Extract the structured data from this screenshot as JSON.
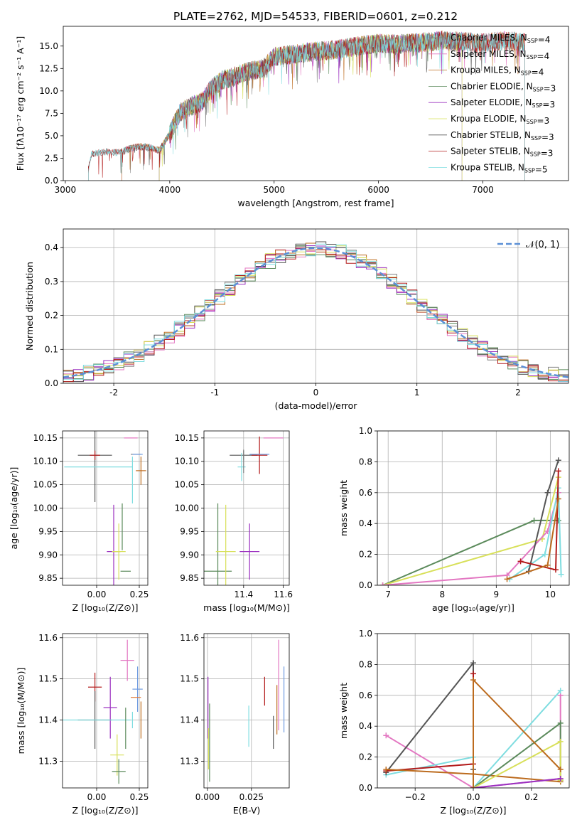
{
  "figure_title": "PLATE=2762, MJD=54533, FIBERID=0601, z=0.212",
  "colors": {
    "Chabrier MILES": "#7f7f7f",
    "Salpeter MILES": "#e377c2",
    "Kroupa MILES": "#bc6b1e",
    "Chabrier ELODIE": "#5b8a5b",
    "Salpeter ELODIE": "#9b30c0",
    "Kroupa ELODIE": "#d8e05a",
    "Chabrier STELIB": "#555555",
    "Salpeter STELIB": "#b31b1b",
    "Kroupa STELIB": "#7fdde0",
    "normal_curve": "#5b8fd6",
    "extra_orange": "#e07b39",
    "extra_blue": "#6f9be0"
  },
  "chart_data": [
    {
      "id": "spectrum",
      "type": "line",
      "title": "PLATE=2762, MJD=54533, FIBERID=0601, z=0.212",
      "xlabel": "wavelength [Angstrom, rest frame]",
      "ylabel": "Flux [fλ10⁻¹⁷ erg cm⁻² s⁻¹ A⁻¹]",
      "xlim": [
        2980,
        7820
      ],
      "ylim": [
        0,
        17.2
      ],
      "xticks": [
        3000,
        4000,
        5000,
        6000,
        7000
      ],
      "yticks": [
        0.0,
        2.5,
        5.0,
        7.5,
        10.0,
        12.5,
        15.0
      ],
      "grid": false,
      "legend_position": "upper-right",
      "envelope": {
        "x": [
          3000,
          3200,
          3250,
          3400,
          3500,
          3600,
          3700,
          3800,
          3900,
          4000,
          4100,
          4200,
          4300,
          4400,
          4500,
          4600,
          4700,
          4800,
          4900,
          5000,
          5200,
          5400,
          5600,
          5800,
          6000,
          6200,
          6400,
          6600,
          6800,
          7000,
          7200,
          7400
        ],
        "y": [
          0,
          0,
          3.0,
          3.2,
          3.1,
          3.5,
          3.8,
          3.7,
          3.4,
          5.2,
          7.6,
          8.3,
          8.7,
          10.3,
          11.2,
          11.5,
          12.0,
          12.3,
          12.5,
          13.8,
          14.1,
          14.4,
          14.6,
          15.0,
          15.3,
          15.2,
          15.4,
          15.6,
          15.5,
          15.3,
          15.6,
          15.4
        ]
      },
      "series": [
        {
          "name": "Chabrier MILES, N$_{SSP}$=4",
          "start": 3540,
          "end": 7400
        },
        {
          "name": "Salpeter MILES, N$_{SSP}$=4",
          "start": 3540,
          "end": 7400
        },
        {
          "name": "Kroupa MILES, N$_{SSP}$=4",
          "start": 3540,
          "end": 7400
        },
        {
          "name": "Chabrier ELODIE, N$_{SSP}$=3",
          "start": 3900,
          "end": 6800
        },
        {
          "name": "Salpeter ELODIE, N$_{SSP}$=3",
          "start": 3900,
          "end": 6800
        },
        {
          "name": "Kroupa ELODIE, N$_{SSP}$=3",
          "start": 3900,
          "end": 6800
        },
        {
          "name": "Chabrier STELIB, N$_{SSP}$=3",
          "start": 3220,
          "end": 7400
        },
        {
          "name": "Salpeter STELIB, N$_{SSP}$=3",
          "start": 3220,
          "end": 7400
        },
        {
          "name": "Kroupa STELIB, N$_{SSP}$=5",
          "start": 3220,
          "end": 7400
        }
      ]
    },
    {
      "id": "residual_histogram",
      "type": "line",
      "xlabel": "(data-model)/error",
      "ylabel": "Normed distribution",
      "xlim": [
        -2.5,
        2.5
      ],
      "ylim": [
        0,
        0.455
      ],
      "xticks": [
        -2,
        -1,
        0,
        1,
        2
      ],
      "yticks": [
        0.0,
        0.1,
        0.2,
        0.3,
        0.4
      ],
      "grid": true,
      "legend": "𝒩(0, 1)",
      "legend_position": "upper-right",
      "bin_width": 0.1,
      "normal_curve": {
        "mean": 0,
        "sigma": 1,
        "style": "dashed"
      }
    },
    {
      "id": "age_vs_metallicity",
      "type": "scatter",
      "xlabel": "Z [log₁₀(Z/Z⊙)]",
      "ylabel": "age  [log₁₀(age/yr)]",
      "xlim": [
        -0.2,
        0.3
      ],
      "ylim": [
        9.835,
        10.165
      ],
      "xticks": [
        "0.00",
        "0.25"
      ],
      "xtick_values": [
        0,
        0.25
      ],
      "yticks": [
        "9.85",
        "9.90",
        "9.95",
        "10.00",
        "10.05",
        "10.10",
        "10.15"
      ],
      "ytick_values": [
        9.85,
        9.9,
        9.95,
        10.0,
        10.05,
        10.1,
        10.15
      ],
      "grid": true,
      "points": [
        {
          "series": "Chabrier MILES",
          "x": 0.23,
          "y": 10.115,
          "xerr": 0.03,
          "yerr": 0.0
        },
        {
          "series": "Salpeter MILES",
          "x": 0.2,
          "y": 10.15,
          "xerr": 0.04,
          "yerr": 0.0
        },
        {
          "series": "Kroupa MILES",
          "x": 0.26,
          "y": 10.08,
          "xerr": 0.03,
          "yerr": 0.03
        },
        {
          "series": "Chabrier ELODIE",
          "x": 0.17,
          "y": 9.865,
          "xerr": 0.03,
          "yerr": 0.0
        },
        {
          "series": "Salpeter ELODIE",
          "x": 0.1,
          "y": 9.907,
          "xerr": 0.04,
          "yerr": 0.1
        },
        {
          "series": "Kroupa ELODIE",
          "x": 0.13,
          "y": 9.907,
          "xerr": 0.04,
          "yerr": 0.06
        },
        {
          "series": "Chabrier STELIB",
          "x": -0.01,
          "y": 10.113,
          "xerr": 0.1,
          "yerr": 0.1
        },
        {
          "series": "Salpeter STELIB",
          "x": -0.01,
          "y": 10.113,
          "xerr": 0.03,
          "yerr": 0.01
        },
        {
          "series": "Kroupa STELIB",
          "x": 0.01,
          "y": 10.088,
          "xerr": 0.2,
          "yerr": 0.0
        },
        {
          "series": "Chabrier ELODIE",
          "x": 0.15,
          "y": 9.96,
          "xerr": 0.0,
          "yerr": 0.05
        },
        {
          "series": "extra_blue",
          "x": 0.24,
          "y": 10.115,
          "xerr": 0.03,
          "yerr": 0.0
        },
        {
          "series": "Kroupa STELIB",
          "x": 0.21,
          "y": 10.06,
          "xerr": 0.0,
          "yerr": 0.05
        }
      ]
    },
    {
      "id": "age_vs_mass",
      "type": "scatter",
      "xlabel": "mass [log₁₀(M/M⊙)]",
      "ylabel": "",
      "xlim": [
        11.2,
        11.63
      ],
      "ylim": [
        9.835,
        10.165
      ],
      "xticks": [
        "11.4",
        "11.6"
      ],
      "xtick_values": [
        11.4,
        11.6
      ],
      "yticks": [
        "9.85",
        "9.90",
        "9.95",
        "10.00",
        "10.05",
        "10.10",
        "10.15"
      ],
      "ytick_values": [
        9.85,
        9.9,
        9.95,
        10.0,
        10.05,
        10.1,
        10.15
      ],
      "grid": true,
      "points": [
        {
          "series": "Chabrier ELODIE",
          "x": 11.27,
          "y": 9.865,
          "xerr": 0.07,
          "yerr": 0.145
        },
        {
          "series": "Kroupa ELODIE",
          "x": 11.31,
          "y": 9.907,
          "xerr": 0.05,
          "yerr": 0.1
        },
        {
          "series": "Salpeter ELODIE",
          "x": 11.43,
          "y": 9.907,
          "xerr": 0.05,
          "yerr": 0.06
        },
        {
          "series": "Chabrier STELIB",
          "x": 11.4,
          "y": 10.113,
          "xerr": 0.07,
          "yerr": 0.01
        },
        {
          "series": "Salpeter STELIB",
          "x": 11.48,
          "y": 10.113,
          "xerr": 0.04,
          "yerr": 0.04
        },
        {
          "series": "Kroupa STELIB",
          "x": 11.39,
          "y": 10.088,
          "xerr": 0.02,
          "yerr": 0.03
        },
        {
          "series": "extra_blue",
          "x": 11.48,
          "y": 10.115,
          "xerr": 0.05,
          "yerr": 0.0
        },
        {
          "series": "Salpeter MILES",
          "x": 11.55,
          "y": 10.15,
          "xerr": 0.05,
          "yerr": 0.0
        },
        {
          "series": "Chabrier MILES",
          "x": 11.4,
          "y": 10.1,
          "xerr": 0.0,
          "yerr": 0.025
        }
      ]
    },
    {
      "id": "mass_weight_vs_age",
      "type": "line",
      "xlabel": "age  [log₁₀(age/yr)]",
      "ylabel": "mass weight",
      "xlim": [
        6.8,
        10.35
      ],
      "ylim": [
        0,
        1.0
      ],
      "xticks": [
        7,
        8,
        9,
        10
      ],
      "yticks": [
        "0.0",
        "0.2",
        "0.4",
        "0.6",
        "0.8",
        "1.0"
      ],
      "ytick_values": [
        0,
        0.2,
        0.4,
        0.6,
        0.8,
        1.0
      ],
      "grid": true,
      "series": [
        {
          "name": "Chabrier ELODIE",
          "x": [
            6.9,
            9.7,
            10.15
          ],
          "y": [
            0.0,
            0.42,
            0.42
          ]
        },
        {
          "name": "Kroupa ELODIE",
          "x": [
            6.9,
            9.85,
            10.15
          ],
          "y": [
            0.0,
            0.3,
            0.7
          ]
        },
        {
          "name": "Salpeter MILES",
          "x": [
            6.9,
            9.2,
            9.95,
            10.15
          ],
          "y": [
            0.0,
            0.065,
            0.35,
            0.6
          ]
        },
        {
          "name": "Kroupa STELIB",
          "x": [
            9.25,
            9.9,
            10.15,
            10.2
          ],
          "y": [
            0.04,
            0.2,
            0.63,
            0.07
          ]
        },
        {
          "name": "Chabrier STELIB",
          "x": [
            9.6,
            9.95,
            10.15
          ],
          "y": [
            0.09,
            0.6,
            0.81
          ]
        },
        {
          "name": "Salpeter STELIB",
          "x": [
            9.45,
            10.1,
            10.15
          ],
          "y": [
            0.155,
            0.1,
            0.74
          ]
        },
        {
          "name": "Kroupa MILES",
          "x": [
            9.2,
            9.95,
            10.15
          ],
          "y": [
            0.04,
            0.13,
            0.56
          ]
        }
      ]
    },
    {
      "id": "mass_vs_metallicity",
      "type": "scatter",
      "xlabel": "Z [log₁₀(Z/Z⊙)]",
      "ylabel": "mass [log₁₀(M/M⊙)]",
      "xlim": [
        -0.2,
        0.3
      ],
      "ylim": [
        11.235,
        11.61
      ],
      "xticks": [
        "0.00",
        "0.25"
      ],
      "xtick_values": [
        0,
        0.25
      ],
      "yticks": [
        "11.3",
        "11.4",
        "11.5",
        "11.6"
      ],
      "ytick_values": [
        11.3,
        11.4,
        11.5,
        11.6
      ],
      "grid": true,
      "points": [
        {
          "series": "Salpeter STELIB",
          "x": -0.01,
          "y": 11.48,
          "xerr": 0.04,
          "yerr": 0.035
        },
        {
          "series": "Salpeter ELODIE",
          "x": 0.08,
          "y": 11.43,
          "xerr": 0.04,
          "yerr": 0.075
        },
        {
          "series": "Kroupa ELODIE",
          "x": 0.12,
          "y": 11.315,
          "xerr": 0.04,
          "yerr": 0.05
        },
        {
          "series": "Chabrier ELODIE",
          "x": 0.13,
          "y": 11.275,
          "xerr": 0.04,
          "yerr": 0.03
        },
        {
          "series": "Chabrier STELIB",
          "x": -0.01,
          "y": 11.4,
          "xerr": 0.1,
          "yerr": 0.07
        },
        {
          "series": "Kroupa STELIB",
          "x": 0.0,
          "y": 11.4,
          "xerr": 0.2,
          "yerr": 0.0
        },
        {
          "series": "Salpeter MILES",
          "x": 0.18,
          "y": 11.545,
          "xerr": 0.04,
          "yerr": 0.05
        },
        {
          "series": "extra_blue",
          "x": 0.24,
          "y": 11.475,
          "xerr": 0.03,
          "yerr": 0.055
        },
        {
          "series": "extra_orange",
          "x": 0.23,
          "y": 11.455,
          "xerr": 0.03,
          "yerr": 0.0
        },
        {
          "series": "Kroupa MILES",
          "x": 0.26,
          "y": 11.4,
          "xerr": 0.0,
          "yerr": 0.045
        },
        {
          "series": "Kroupa STELIB",
          "x": 0.21,
          "y": 11.4,
          "xerr": 0.0,
          "yerr": 0.02
        },
        {
          "series": "Chabrier ELODIE",
          "x": 0.17,
          "y": 11.38,
          "xerr": 0.0,
          "yerr": 0.05
        }
      ]
    },
    {
      "id": "mass_vs_ebv",
      "type": "scatter",
      "xlabel": "E(B-V)",
      "ylabel": "",
      "xlim": [
        -0.002,
        0.0465
      ],
      "ylim": [
        11.235,
        11.61
      ],
      "xticks": [
        "0.000",
        "0.025"
      ],
      "xtick_values": [
        0,
        0.025
      ],
      "yticks": [
        "11.3",
        "11.4",
        "11.5",
        "11.6"
      ],
      "ytick_values": [
        11.3,
        11.4,
        11.5,
        11.6
      ],
      "grid": true,
      "points": [
        {
          "series": "Salpeter ELODIE",
          "x": 0.0003,
          "y": 11.43,
          "xerr": 0,
          "yerr": 0.075
        },
        {
          "series": "Kroupa ELODIE",
          "x": 0.0006,
          "y": 11.33,
          "xerr": 0,
          "yerr": 0.05
        },
        {
          "series": "Chabrier ELODIE",
          "x": 0.0012,
          "y": 11.345,
          "xerr": 0,
          "yerr": 0.095
        },
        {
          "series": "Kroupa STELIB",
          "x": 0.0235,
          "y": 11.385,
          "xerr": 0,
          "yerr": 0.05
        },
        {
          "series": "Salpeter STELIB",
          "x": 0.0325,
          "y": 11.47,
          "xerr": 0,
          "yerr": 0.035
        },
        {
          "series": "Chabrier STELIB",
          "x": 0.0375,
          "y": 11.37,
          "xerr": 0,
          "yerr": 0.04
        },
        {
          "series": "Kroupa MILES",
          "x": 0.0395,
          "y": 11.425,
          "xerr": 0,
          "yerr": 0.06
        },
        {
          "series": "Salpeter MILES",
          "x": 0.0405,
          "y": 11.485,
          "xerr": 0,
          "yerr": 0.11
        },
        {
          "series": "extra_blue",
          "x": 0.0435,
          "y": 11.45,
          "xerr": 0,
          "yerr": 0.08
        }
      ]
    },
    {
      "id": "mass_weight_vs_metallicity",
      "type": "line",
      "xlabel": "Z [log₁₀(Z/Z⊙)]",
      "ylabel": "mass weight",
      "xlim": [
        -0.33,
        0.33
      ],
      "ylim": [
        0,
        1.0
      ],
      "xticks": [
        "−0.2",
        "0.0",
        "0.2"
      ],
      "xtick_values": [
        -0.2,
        0,
        0.2
      ],
      "yticks": [
        "0.0",
        "0.2",
        "0.4",
        "0.6",
        "0.8",
        "1.0"
      ],
      "ytick_values": [
        0,
        0.2,
        0.4,
        0.6,
        0.8,
        1.0
      ],
      "grid": true,
      "series": [
        {
          "name": "Salpeter MILES",
          "x": [
            -0.3,
            0.0,
            0.3,
            0.3
          ],
          "y": [
            0.34,
            0.0,
            0.06,
            0.6
          ]
        },
        {
          "name": "Kroupa STELIB",
          "x": [
            -0.3,
            0.0,
            0.0,
            0.3
          ],
          "y": [
            0.085,
            0.2,
            0.0,
            0.63
          ]
        },
        {
          "name": "Chabrier STELIB",
          "x": [
            -0.3,
            0.0,
            0.0
          ],
          "y": [
            0.1,
            0.81,
            0.12
          ]
        },
        {
          "name": "Salpeter STELIB",
          "x": [
            -0.3,
            0.0,
            0.0
          ],
          "y": [
            0.11,
            0.155,
            0.74
          ]
        },
        {
          "name": "Kroupa MILES",
          "x": [
            -0.3,
            0.0,
            0.3
          ],
          "y": [
            0.12,
            0.09,
            0.04
          ]
        },
        {
          "name": "Chabrier ELODIE",
          "x": [
            0.0,
            0.3,
            0.3
          ],
          "y": [
            0.0,
            0.42,
            0.05
          ]
        },
        {
          "name": "Kroupa ELODIE",
          "x": [
            0.0,
            0.3,
            0.3
          ],
          "y": [
            0.0,
            0.3,
            0.05
          ]
        },
        {
          "name": "Salpeter ELODIE",
          "x": [
            0.0,
            0.3
          ],
          "y": [
            0.0,
            0.06
          ]
        },
        {
          "name": "Kroupa MILES",
          "x": [
            0.0,
            0.0,
            0.3
          ],
          "y": [
            0.0,
            0.7,
            0.12
          ]
        }
      ]
    }
  ]
}
